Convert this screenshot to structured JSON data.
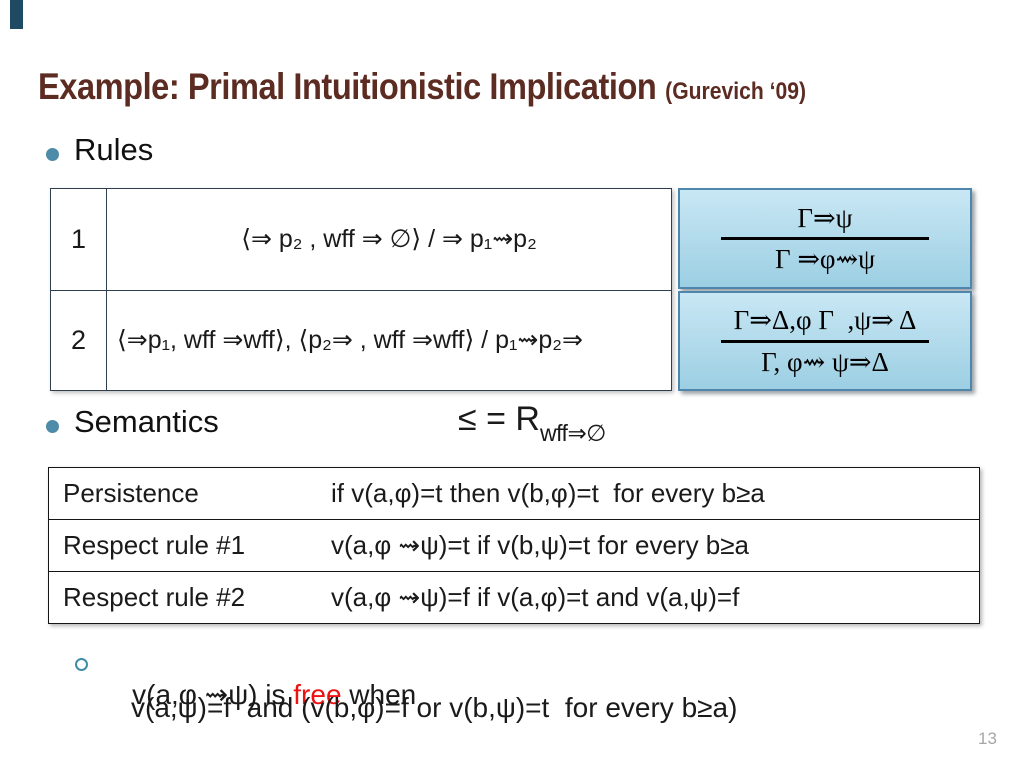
{
  "slide": {
    "title": "Example: Primal Intuitionistic Implication",
    "title_suffix": "(Gurevich ‘09)",
    "page_number": "13",
    "colors": {
      "title": "#5c2b21",
      "bullet": "#4e8ba8",
      "box_fill": "#a8d4e7",
      "box_border": "#4f86ab",
      "highlight_red": "#ee1111",
      "page_number_gray": "#a6a6a6"
    }
  },
  "rules": {
    "heading": "Rules",
    "table": {
      "rows": [
        {
          "num": "1",
          "formula": "⟨⇒ p₂ , wff ⇒ ∅⟩ / ⇒ p₁⇝p₂"
        },
        {
          "num": "2",
          "formula": "⟨⇒p₁, wff ⇒wff⟩, ⟨p₂⇒ , wff ⇒wff⟩ / p₁⇝p₂⇒"
        }
      ]
    },
    "inference_boxes": [
      {
        "premise": "Γ⇒ψ",
        "conclusion": "Γ ⇒φ⇝ψ"
      },
      {
        "premise": "Γ⇒Δ,φ Γ  ,ψ⇒ Δ",
        "conclusion": "Γ, φ⇝ ψ⇒Δ"
      }
    ]
  },
  "semantics": {
    "heading": "Semantics",
    "relation_lhs": "≤ = R",
    "relation_subscript": "wff⇒∅",
    "table": {
      "rows": [
        {
          "label": "Persistence",
          "condition": "if v(a,φ)=t then v(b,φ)=t  for every b≥a"
        },
        {
          "label": "Respect rule #1",
          "condition": "v(a,φ ⇝ψ)=t if v(b,ψ)=t for every b≥a"
        },
        {
          "label": "Respect rule #2",
          "condition": "v(a,φ ⇝ψ)=f if v(a,φ)=t and v(a,ψ)=f"
        }
      ]
    }
  },
  "note": {
    "prefix": "v(a,φ ⇝ψ) is ",
    "highlight": "free",
    "suffix": " when",
    "line2": "v(a,ψ)=f  and (v(b,φ)=f or v(b,ψ)=t  for every b≥a)"
  }
}
